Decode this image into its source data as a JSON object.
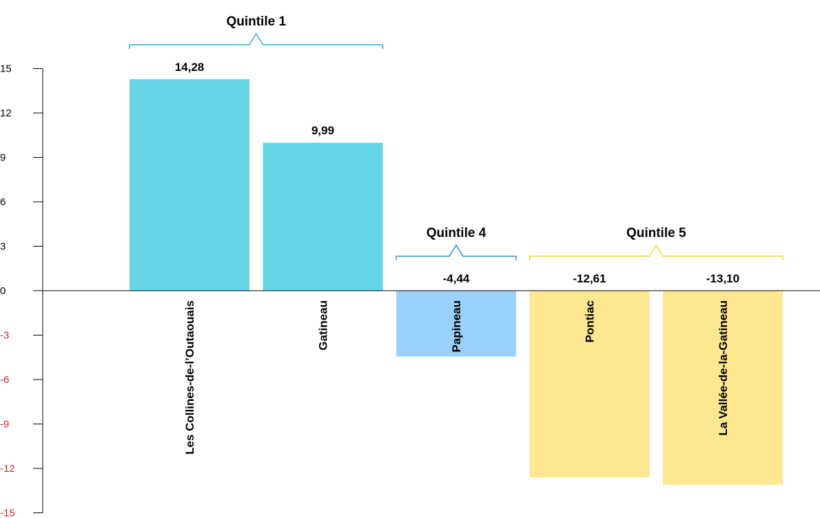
{
  "chart_data": {
    "type": "bar",
    "categories": [
      "Les Collines-de-l’Outaouais",
      "Gatineau",
      "Papineau",
      "Pontiac",
      "La Vallée-de-la-Gatineau"
    ],
    "values": [
      14.28,
      9.99,
      -4.44,
      -12.61,
      -13.1
    ],
    "value_labels": [
      "14,28",
      "9,99",
      "-4,44",
      "-12,61",
      "-13,10"
    ],
    "bar_colors": [
      "#66d5e6",
      "#66d5e6",
      "#99d1fb",
      "#fde891",
      "#fde891"
    ],
    "ylim": [
      -15,
      15
    ],
    "yticks": [
      15,
      12,
      9,
      6,
      3,
      0,
      -3,
      -6,
      -9,
      -12,
      -15
    ],
    "ytick_labels": [
      "15",
      "12",
      "9",
      "6",
      "3",
      "0",
      "-3",
      "-6",
      "-9",
      "-12",
      "-15"
    ],
    "positive_tick_color": "#000000",
    "negative_tick_color": "#d9232b",
    "groups": [
      {
        "label": "Quintile 1",
        "first": 0,
        "last": 1,
        "color": "#1fb3d1"
      },
      {
        "label": "Quintile 4",
        "first": 2,
        "last": 2,
        "color": "#2b8fd9"
      },
      {
        "label": "Quintile 5",
        "first": 3,
        "last": 4,
        "color": "#f2d633"
      }
    ],
    "title": "",
    "xlabel": "",
    "ylabel": "",
    "grid": false,
    "legend": "none"
  }
}
